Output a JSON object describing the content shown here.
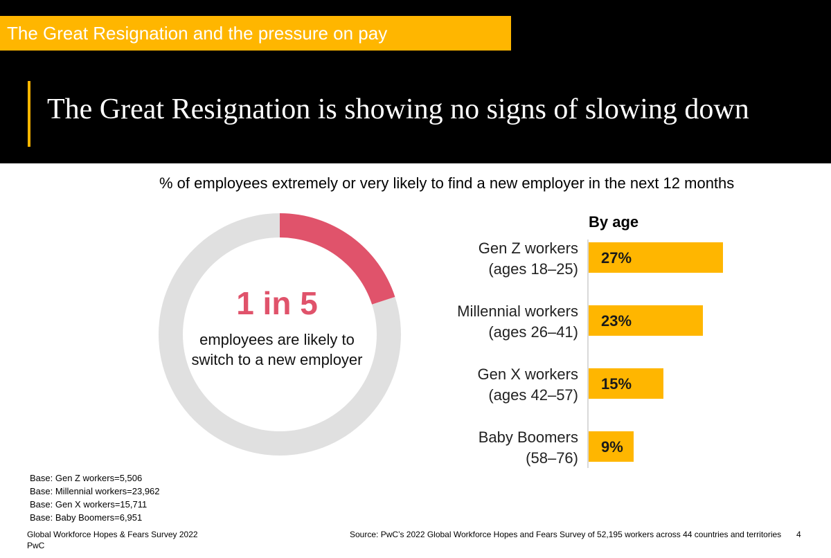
{
  "header": {
    "section_tag": "The Great Resignation and the pressure on pay",
    "title": "The Great Resignation is showing no signs of slowing down"
  },
  "colors": {
    "accent_yellow": "#ffb600",
    "highlight_pink": "#e0536b",
    "ring_grey": "#e0e0e0",
    "header_black": "#000000"
  },
  "chart_subtitle": "% of employees extremely or very likely to find a new employer in the next 12 months",
  "donut": {
    "headline": "1 in 5",
    "caption": "employees are likely to switch to a new employer"
  },
  "by_age_label": "By age",
  "chart_data": [
    {
      "type": "pie",
      "variant": "donut",
      "values": [
        20,
        80
      ],
      "labels": [
        "",
        ""
      ]
    },
    {
      "type": "bar",
      "orientation": "horizontal",
      "title": "By age",
      "categories": [
        {
          "line1": "Gen Z workers",
          "line2": "(ages 18–25)"
        },
        {
          "line1": "Millennial workers",
          "line2": "(ages 26–41)"
        },
        {
          "line1": "Gen X workers",
          "line2": "(ages 42–57)"
        },
        {
          "line1": "Baby Boomers",
          "line2": "(58–76)"
        }
      ],
      "values": [
        27,
        23,
        15,
        9
      ],
      "value_labels": [
        "27%",
        "23%",
        "15%",
        "9%"
      ],
      "xlim": [
        0,
        30
      ]
    }
  ],
  "base_notes": [
    "Base: Gen Z workers=5,506",
    "Base: Millennial workers=23,962",
    "Base: Gen X workers=15,711",
    "Base: Baby Boomers=6,951"
  ],
  "footer": {
    "survey": "Global Workforce Hopes & Fears Survey 2022",
    "org": "PwC",
    "source": "Source: PwC’s 2022 Global Workforce Hopes and Fears Survey of 52,195 workers across 44 countries and territories",
    "page_number": "4"
  }
}
